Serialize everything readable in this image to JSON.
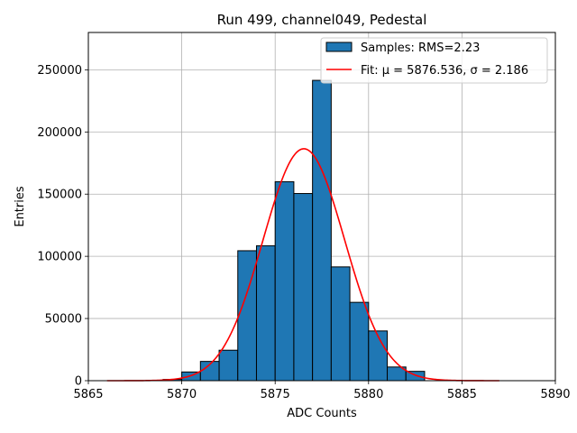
{
  "chart_data": {
    "type": "bar",
    "title": "Run 499, channel049, Pedestal",
    "xlabel": "ADC Counts",
    "ylabel": "Entries",
    "xlim": [
      5865,
      5890
    ],
    "ylim": [
      0,
      280000
    ],
    "xticks": [
      5865,
      5870,
      5875,
      5880,
      5885,
      5890
    ],
    "yticks": [
      0,
      50000,
      100000,
      150000,
      200000,
      250000
    ],
    "grid": true,
    "legend_position": "top-right",
    "bin_width": 1,
    "bins": [
      {
        "left": 5869,
        "value": 1000
      },
      {
        "left": 5870,
        "value": 7000
      },
      {
        "left": 5871,
        "value": 15500
      },
      {
        "left": 5872,
        "value": 24500
      },
      {
        "left": 5873,
        "value": 104500
      },
      {
        "left": 5874,
        "value": 108500
      },
      {
        "left": 5875,
        "value": 160000
      },
      {
        "left": 5876,
        "value": 150500
      },
      {
        "left": 5877,
        "value": 241500
      },
      {
        "left": 5878,
        "value": 91500
      },
      {
        "left": 5879,
        "value": 63000
      },
      {
        "left": 5880,
        "value": 40000
      },
      {
        "left": 5881,
        "value": 11000
      },
      {
        "left": 5882,
        "value": 7500
      }
    ],
    "fit": {
      "mu": 5876.536,
      "sigma": 2.186,
      "amplitude": 186500,
      "x_range": [
        5866,
        5887
      ]
    },
    "series": [
      {
        "name": "Samples: RMS=2.23",
        "kind": "histogram",
        "color": "#1f77b4"
      },
      {
        "name": "Fit: μ = 5876.536, σ = 2.186",
        "kind": "line",
        "color": "#ff0000"
      }
    ]
  }
}
